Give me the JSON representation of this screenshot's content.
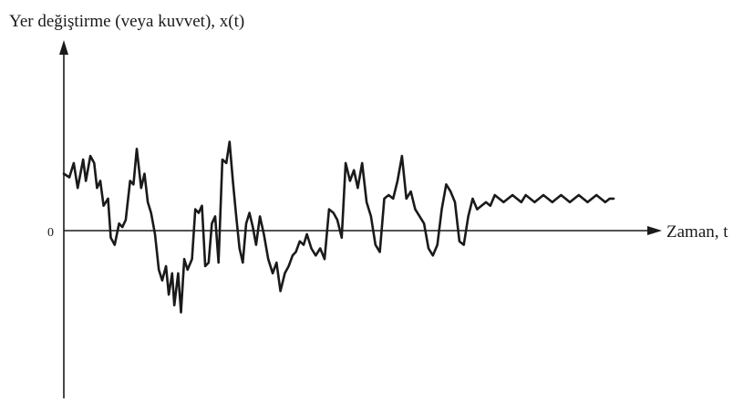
{
  "chart_data": {
    "type": "line",
    "title": "",
    "ylabel": "Yer değiştirme (veya kuvvet), x(t)",
    "xlabel": "Zaman, t",
    "y_zero_label": "0",
    "grid": false,
    "legend": "none",
    "xlim": [
      0,
      1
    ],
    "ylim": [
      -1.8,
      1.7
    ],
    "line_color": "#1a1a1a",
    "series": [
      {
        "x": [
          0,
          0.01,
          0.018,
          0.025,
          0.035,
          0.04,
          0.048,
          0.055,
          0.06,
          0.066,
          0.072,
          0.08,
          0.085,
          0.092,
          0.1,
          0.106,
          0.112,
          0.12,
          0.126,
          0.132,
          0.14,
          0.146,
          0.152,
          0.158,
          0.165,
          0.172,
          0.178,
          0.185,
          0.19,
          0.196,
          0.2,
          0.207,
          0.212,
          0.218,
          0.224,
          0.232,
          0.238,
          0.244,
          0.25,
          0.256,
          0.262,
          0.268,
          0.274,
          0.28,
          0.287,
          0.294,
          0.3,
          0.306,
          0.312,
          0.318,
          0.324,
          0.33,
          0.336,
          0.342,
          0.348,
          0.355,
          0.362,
          0.37,
          0.378,
          0.385,
          0.392,
          0.4,
          0.407,
          0.414,
          0.42,
          0.427,
          0.434,
          0.44,
          0.448,
          0.456,
          0.464,
          0.472,
          0.48,
          0.488,
          0.495,
          0.503,
          0.51,
          0.518,
          0.525,
          0.532,
          0.54,
          0.548,
          0.556,
          0.564,
          0.572,
          0.58,
          0.588,
          0.596,
          0.604,
          0.612,
          0.62,
          0.628,
          0.636,
          0.644,
          0.652,
          0.66,
          0.668,
          0.676,
          0.684,
          0.692,
          0.7,
          0.708,
          0.716,
          0.724,
          0.732,
          0.74,
          0.748,
          0.756,
          0.764,
          0.772,
          0.78,
          0.788,
          0.796,
          0.804,
          0.812,
          0.82,
          0.828,
          0.836,
          0.844,
          0.852,
          0.86,
          0.868,
          0.876,
          0.884,
          0.892,
          0.9,
          0.908,
          0.916,
          0.924,
          0.932,
          0.94,
          0.948,
          0.956,
          0.964,
          0.972,
          0.98,
          0.988,
          0.995
        ],
        "y": [
          0.8,
          0.75,
          0.95,
          0.6,
          1.0,
          0.7,
          1.05,
          0.95,
          0.6,
          0.7,
          0.35,
          0.45,
          -0.1,
          -0.2,
          0.1,
          0.05,
          0.15,
          0.7,
          0.65,
          1.15,
          0.6,
          0.8,
          0.4,
          0.25,
          -0.05,
          -0.55,
          -0.7,
          -0.5,
          -0.9,
          -0.6,
          -1.05,
          -0.6,
          -1.15,
          -0.4,
          -0.55,
          -0.4,
          0.3,
          0.25,
          0.35,
          -0.5,
          -0.45,
          0.1,
          0.2,
          -0.45,
          1.0,
          0.95,
          1.25,
          0.7,
          0.2,
          -0.25,
          -0.45,
          0.1,
          0.25,
          0.05,
          -0.2,
          0.2,
          -0.05,
          -0.4,
          -0.6,
          -0.45,
          -0.85,
          -0.6,
          -0.5,
          -0.35,
          -0.3,
          -0.15,
          -0.2,
          -0.05,
          -0.25,
          -0.35,
          -0.25,
          -0.4,
          0.3,
          0.25,
          0.15,
          -0.1,
          0.95,
          0.7,
          0.85,
          0.6,
          0.95,
          0.4,
          0.2,
          -0.2,
          -0.3,
          0.45,
          0.5,
          0.45,
          0.7,
          1.05,
          0.45,
          0.55,
          0.3,
          0.2,
          0.1,
          -0.25,
          -0.35,
          -0.2,
          0.3,
          0.65,
          0.55,
          0.4,
          -0.15,
          -0.2,
          0.2,
          0.45,
          0.3,
          0.35,
          0.4,
          0.35,
          0.5,
          0.45,
          0.4,
          0.45,
          0.5,
          0.45,
          0.4,
          0.5,
          0.45,
          0.4,
          0.45,
          0.5,
          0.45,
          0.4,
          0.45,
          0.5,
          0.45,
          0.4,
          0.45,
          0.5,
          0.45,
          0.4,
          0.45,
          0.5,
          0.45,
          0.4,
          0.45,
          0.45
        ]
      }
    ]
  }
}
